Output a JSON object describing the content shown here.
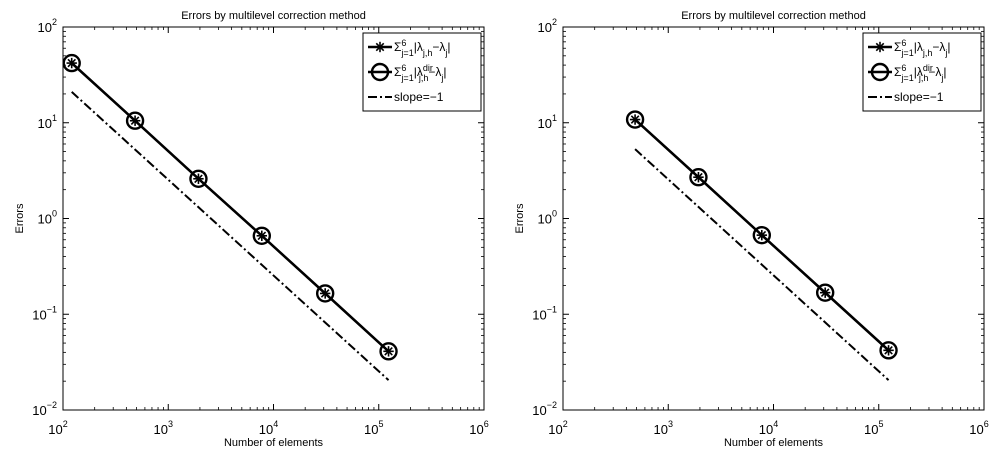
{
  "chart_data": [
    {
      "type": "line",
      "title": "Errors by multilevel correction method",
      "xlabel": "Number of elements",
      "ylabel": "Errors",
      "x_scale": "log",
      "y_scale": "log",
      "xlim": [
        100,
        1000000
      ],
      "ylim": [
        0.01,
        100
      ],
      "x_ticks": [
        {
          "value": 100,
          "base": "10",
          "exp": "2"
        },
        {
          "value": 1000,
          "base": "10",
          "exp": "3"
        },
        {
          "value": 10000,
          "base": "10",
          "exp": "4"
        },
        {
          "value": 100000,
          "base": "10",
          "exp": "5"
        },
        {
          "value": 1000000,
          "base": "10",
          "exp": "6"
        }
      ],
      "y_ticks": [
        {
          "value": 0.01,
          "base": "10",
          "exp": "−2"
        },
        {
          "value": 0.1,
          "base": "10",
          "exp": "−1"
        },
        {
          "value": 1,
          "base": "10",
          "exp": "0"
        },
        {
          "value": 10,
          "base": "10",
          "exp": "1"
        },
        {
          "value": 100,
          "base": "10",
          "exp": "2"
        }
      ],
      "legend_position": "top-right",
      "series": [
        {
          "marker": "asterisk",
          "line": "solid",
          "color": "#000000",
          "legend_html": "Σ<tspan baseline-shift=\"super\" font-size=\"9\">6</tspan><tspan dx=\"-5\" baseline-shift=\"sub\" font-size=\"9\">j=1</tspan>|λ<tspan baseline-shift=\"sub\" font-size=\"9\">j,h</tspan>−λ<tspan baseline-shift=\"sub\" font-size=\"9\">j</tspan>|",
          "x": [
            121,
            484,
            1936,
            7744,
            30976,
            123904
          ],
          "y": [
            42,
            10.5,
            2.6,
            0.66,
            0.165,
            0.041
          ]
        },
        {
          "marker": "circle",
          "line": "solid",
          "color": "#000000",
          "legend_html": "Σ<tspan baseline-shift=\"super\" font-size=\"9\">6</tspan><tspan dx=\"-5\" baseline-shift=\"sub\" font-size=\"9\">j=1</tspan>|λ<tspan baseline-shift=\"super\" font-size=\"9\">dir</tspan><tspan dx=\"-14\" baseline-shift=\"sub\" font-size=\"9\">j,h</tspan>−λ<tspan baseline-shift=\"sub\" font-size=\"9\">j</tspan>|",
          "x": [
            121,
            484,
            1936,
            7744,
            30976,
            123904
          ],
          "y": [
            42,
            10.5,
            2.6,
            0.66,
            0.165,
            0.041
          ]
        },
        {
          "name": "slope=−1",
          "marker": "none",
          "line": "dashdot",
          "color": "#000000",
          "x": [
            121,
            123904
          ],
          "y": [
            21,
            0.0205
          ]
        }
      ]
    },
    {
      "type": "line",
      "title": "Errors by multilevel correction method",
      "xlabel": "Number of elements",
      "ylabel": "Errors",
      "x_scale": "log",
      "y_scale": "log",
      "xlim": [
        100,
        1000000
      ],
      "ylim": [
        0.01,
        100
      ],
      "x_ticks": [
        {
          "value": 100,
          "base": "10",
          "exp": "2"
        },
        {
          "value": 1000,
          "base": "10",
          "exp": "3"
        },
        {
          "value": 10000,
          "base": "10",
          "exp": "4"
        },
        {
          "value": 100000,
          "base": "10",
          "exp": "5"
        },
        {
          "value": 1000000,
          "base": "10",
          "exp": "6"
        }
      ],
      "y_ticks": [
        {
          "value": 0.01,
          "base": "10",
          "exp": "−2"
        },
        {
          "value": 0.1,
          "base": "10",
          "exp": "−1"
        },
        {
          "value": 1,
          "base": "10",
          "exp": "0"
        },
        {
          "value": 10,
          "base": "10",
          "exp": "1"
        },
        {
          "value": 100,
          "base": "10",
          "exp": "2"
        }
      ],
      "legend_position": "top-right",
      "series": [
        {
          "marker": "asterisk",
          "line": "solid",
          "color": "#000000",
          "legend_html": "Σ<tspan baseline-shift=\"super\" font-size=\"9\">6</tspan><tspan dx=\"-5\" baseline-shift=\"sub\" font-size=\"9\">j=1</tspan>|λ<tspan baseline-shift=\"sub\" font-size=\"9\">j,h</tspan>−λ<tspan baseline-shift=\"sub\" font-size=\"9\">j</tspan>|",
          "x": [
            484,
            1936,
            7744,
            30976,
            123904
          ],
          "y": [
            10.8,
            2.7,
            0.67,
            0.168,
            0.042
          ]
        },
        {
          "marker": "circle",
          "line": "solid",
          "color": "#000000",
          "legend_html": "Σ<tspan baseline-shift=\"super\" font-size=\"9\">6</tspan><tspan dx=\"-5\" baseline-shift=\"sub\" font-size=\"9\">j=1</tspan>|λ<tspan baseline-shift=\"super\" font-size=\"9\">dir</tspan><tspan dx=\"-14\" baseline-shift=\"sub\" font-size=\"9\">j,h</tspan>−λ<tspan baseline-shift=\"sub\" font-size=\"9\">j</tspan>|",
          "x": [
            484,
            1936,
            7744,
            30976,
            123904
          ],
          "y": [
            10.8,
            2.7,
            0.67,
            0.168,
            0.042
          ]
        },
        {
          "name": "slope=−1",
          "marker": "none",
          "line": "dashdot",
          "color": "#000000",
          "x": [
            484,
            123904
          ],
          "y": [
            5.3,
            0.0205
          ]
        }
      ]
    }
  ]
}
